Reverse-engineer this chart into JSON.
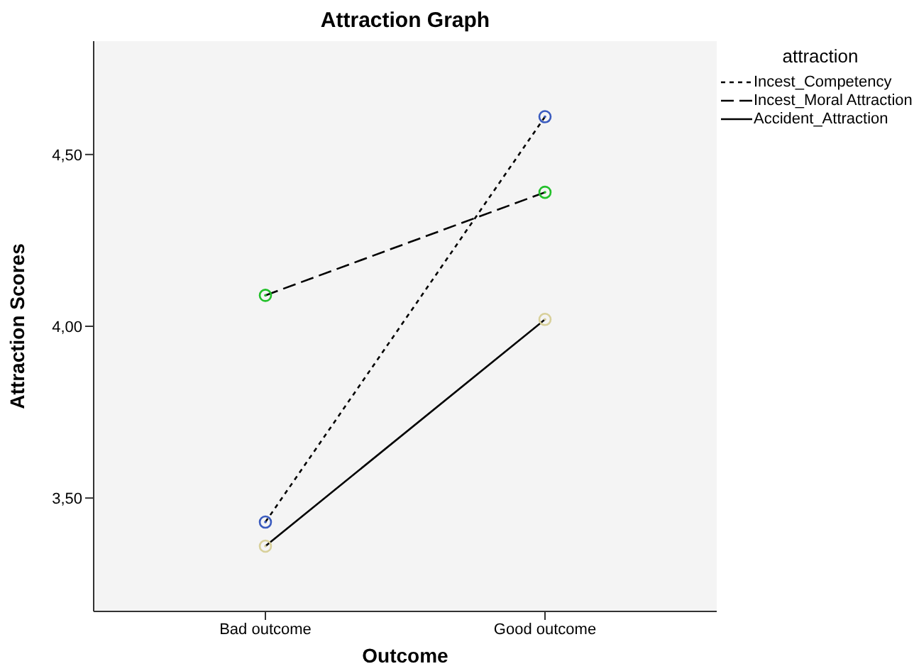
{
  "chart_data": {
    "type": "line",
    "title": "Attraction Graph",
    "xlabel": "Outcome",
    "ylabel": "Attraction Scores",
    "legend_title": "attraction",
    "legend": "top right",
    "marker": "circle",
    "grid": false,
    "categories": [
      "Bad outcome",
      "Good outcome"
    ],
    "ylim": [
      3.17,
      4.83
    ],
    "yticks": [
      {
        "value": 3.5,
        "label": "3,50"
      },
      {
        "value": 4,
        "label": "4,00"
      },
      {
        "value": 4.5,
        "label": "4,50"
      }
    ],
    "series": [
      {
        "name": "Incest_Competency",
        "color": "#000000",
        "colors": [
          "#3a5bbf",
          "#3a5bbf"
        ],
        "line_style": "dotted",
        "values": [
          3.43,
          4.61
        ]
      },
      {
        "name": "Incest_Moral Attraction",
        "color": "#000000",
        "colors": [
          "#22c02a",
          "#22c02a"
        ],
        "line_style": "dashed",
        "values": [
          4.09,
          4.39
        ]
      },
      {
        "name": "Accident_Attraction",
        "color": "#000000",
        "colors": [
          "#d8d09a",
          "#d8d09a"
        ],
        "line_style": "solid",
        "values": [
          3.36,
          4.02
        ]
      }
    ]
  }
}
